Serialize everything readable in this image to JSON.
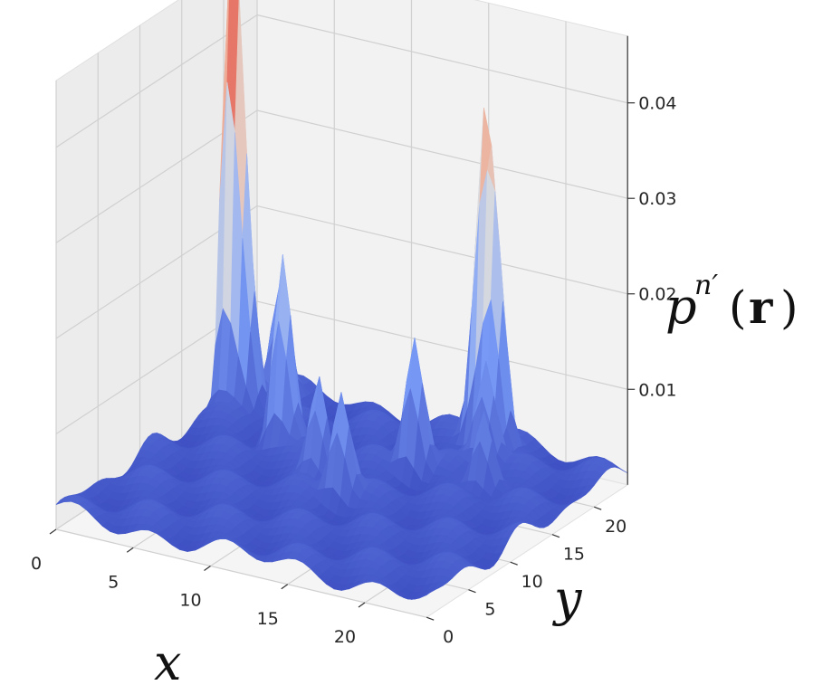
{
  "chart_data": {
    "type": "surface",
    "colormap": "coolwarm",
    "xlabel": "x",
    "ylabel": "y",
    "zlabel_parts": {
      "base": "p",
      "sup": "n′",
      "arg": "r",
      "open": "(",
      "close": ")"
    },
    "xlim": [
      0,
      24
    ],
    "ylim": [
      0,
      24
    ],
    "zlim": [
      0,
      0.047
    ],
    "x_ticks": [
      "0",
      "5",
      "10",
      "15",
      "20"
    ],
    "y_ticks": [
      "0",
      "5",
      "10",
      "15",
      "20"
    ],
    "z_ticks": [
      "0.01",
      "0.02",
      "0.03",
      "0.04"
    ],
    "grid": true,
    "peaks": [
      {
        "x": 0.5,
        "y": 20.0,
        "z": 0.047
      },
      {
        "x": 1.5,
        "y": 20.0,
        "z": 0.018
      },
      {
        "x": 2.5,
        "y": 22.0,
        "z": 0.012
      },
      {
        "x": 6.0,
        "y": 16.0,
        "z": 0.02
      },
      {
        "x": 10.0,
        "y": 13.0,
        "z": 0.011
      },
      {
        "x": 12.5,
        "y": 11.0,
        "z": 0.011
      },
      {
        "x": 14.0,
        "y": 17.0,
        "z": 0.014
      },
      {
        "x": 15.5,
        "y": 22.5,
        "z": 0.033
      },
      {
        "x": 16.5,
        "y": 22.0,
        "z": 0.024
      },
      {
        "x": 17.0,
        "y": 20.0,
        "z": 0.011
      },
      {
        "x": 18.5,
        "y": 17.0,
        "z": 0.009
      }
    ],
    "baseline": 0.002
  }
}
